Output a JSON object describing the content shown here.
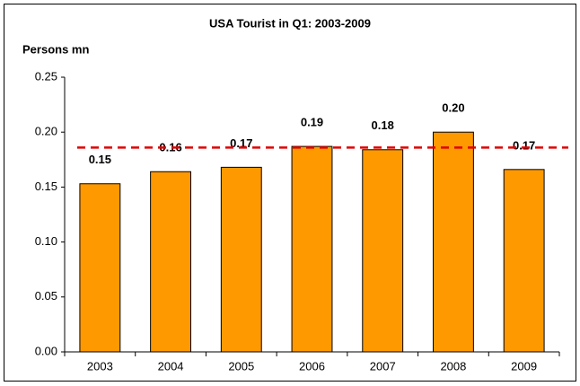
{
  "chart_data": {
    "type": "bar",
    "title": "USA Tourist in Q1: 2003-2009",
    "y_label": "Persons mn",
    "categories": [
      "2003",
      "2004",
      "2005",
      "2006",
      "2007",
      "2008",
      "2009"
    ],
    "values": [
      0.153,
      0.164,
      0.168,
      0.187,
      0.184,
      0.2,
      0.166
    ],
    "value_labels": [
      "0.15",
      "0.16",
      "0.17",
      "0.19",
      "0.18",
      "0.20",
      "0.17"
    ],
    "color": "#ff9900",
    "ylim": [
      0,
      0.25
    ],
    "yticks": [
      {
        "value": 0,
        "label": "0.00"
      },
      {
        "value": 0.05,
        "label": "0.05"
      },
      {
        "value": 0.1,
        "label": "0.10"
      },
      {
        "value": 0.15,
        "label": "0.15"
      },
      {
        "value": 0.2,
        "label": "0.20"
      },
      {
        "value": 0.25,
        "label": "0.25"
      }
    ],
    "reference_line": {
      "value": 0.186,
      "color": "#e00000"
    },
    "grid": false
  }
}
